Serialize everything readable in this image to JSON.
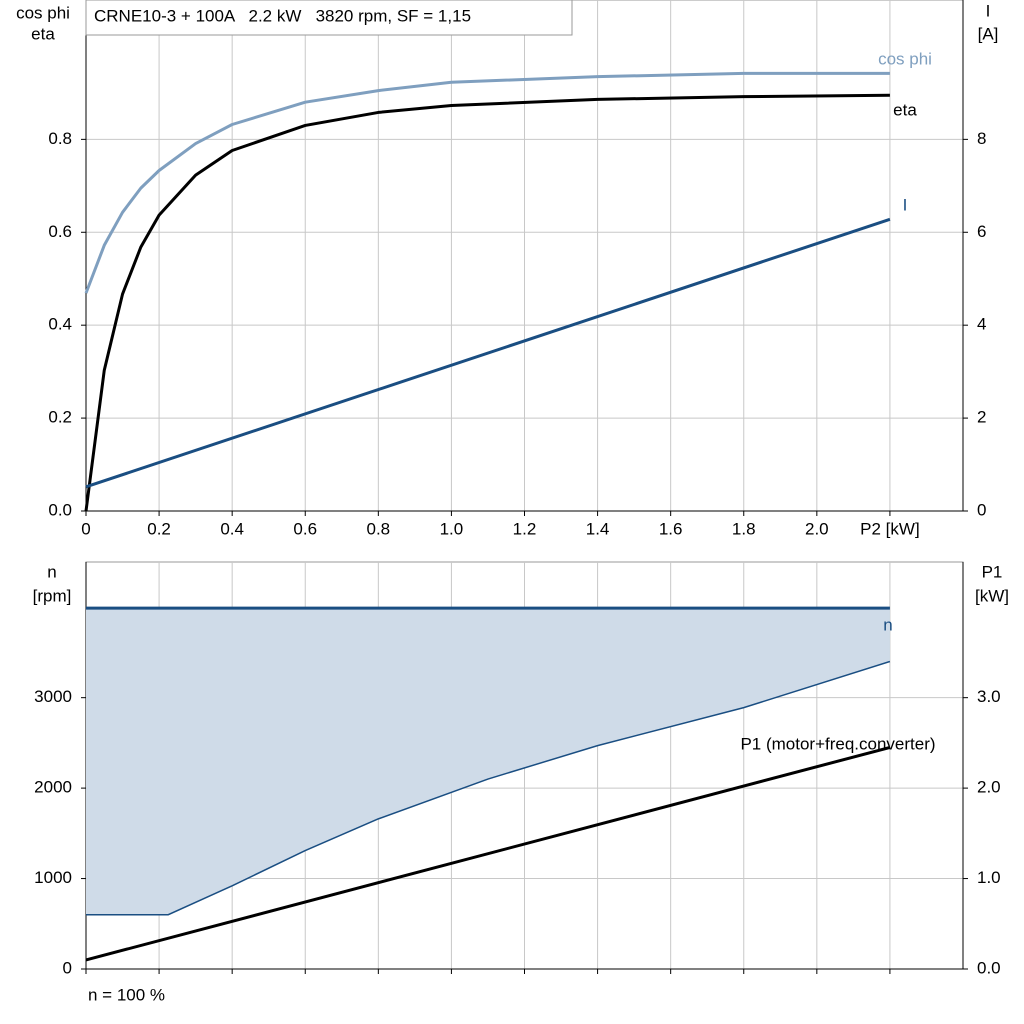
{
  "chart_data": [
    {
      "type": "line",
      "title": "CRNE10-3 + 100A   2.2 kW   3820 rpm, SF = 1,15",
      "ylabel": [
        "cos phi",
        "eta"
      ],
      "y2label": [
        "I",
        "[A]"
      ],
      "xlim": [
        0,
        2.4
      ],
      "xticks": [
        0,
        0.2,
        0.4,
        0.6,
        0.8,
        {
          "value": 1,
          "label": "1.0"
        },
        1.2,
        1.4,
        1.6,
        1.8,
        {
          "value": 2,
          "label": "2.0"
        },
        {
          "value": 2.2,
          "label": "P2 [kW]"
        }
      ],
      "ylim": [
        0,
        1.1
      ],
      "yticks": [
        {
          "value": 0,
          "label": "0.0"
        },
        0.2,
        0.4,
        0.6,
        0.8
      ],
      "y2lim": [
        0,
        11
      ],
      "y2ticks": [
        0,
        2,
        4,
        6,
        8
      ],
      "grid": true,
      "series": [
        {
          "name": "cos phi",
          "color": "#7f9fbf",
          "axis": "y",
          "x": [
            0,
            0.05,
            0.1,
            0.15,
            0.2,
            0.3,
            0.4,
            0.6,
            0.8,
            1.0,
            1.4,
            1.8,
            2.2
          ],
          "values": [
            0.469,
            0.572,
            0.643,
            0.695,
            0.733,
            0.791,
            0.832,
            0.88,
            0.905,
            0.923,
            0.935,
            0.942,
            0.942
          ]
        },
        {
          "name": "eta",
          "color": "#000000",
          "axis": "y",
          "x": [
            0,
            0.05,
            0.1,
            0.15,
            0.2,
            0.3,
            0.4,
            0.6,
            0.8,
            1.0,
            1.4,
            1.8,
            2.2
          ],
          "values": [
            0,
            0.303,
            0.467,
            0.568,
            0.637,
            0.723,
            0.776,
            0.83,
            0.858,
            0.873,
            0.886,
            0.892,
            0.895
          ]
        },
        {
          "name": "I",
          "color": "#1a4e82",
          "axis": "y2",
          "x": [
            0,
            2.2
          ],
          "values": [
            0.52,
            6.28
          ]
        }
      ]
    },
    {
      "type": "area",
      "annotation": "n = 100 %",
      "ylabel": [
        "n",
        "[rpm]"
      ],
      "y2label": [
        "P1",
        "[kW]"
      ],
      "xlim": [
        0,
        2.4
      ],
      "xgrid": [
        0,
        0.2,
        0.4,
        0.6,
        0.8,
        1.0,
        1.2,
        1.4,
        1.6,
        1.8,
        2.0,
        2.2
      ],
      "ylim": [
        0,
        4500
      ],
      "yticks": [
        0,
        1000,
        2000,
        3000
      ],
      "y2lim": [
        0,
        4.5
      ],
      "y2ticks": [
        {
          "value": 0,
          "label": "0.0"
        },
        {
          "value": 1,
          "label": "1.0"
        },
        {
          "value": 2,
          "label": "2.0"
        },
        {
          "value": 3,
          "label": "3.0"
        }
      ],
      "grid": true,
      "series": [
        {
          "name": "n",
          "color": "#1a4e82",
          "axis": "y",
          "fill": "#cfdbe8",
          "x": [
            0,
            2.2
          ],
          "values": [
            3990,
            3990
          ],
          "lower_x": [
            0,
            0.225,
            0.4,
            0.6,
            0.8,
            1.1,
            1.4,
            1.8,
            2.2
          ],
          "lower_values": [
            600,
            600,
            920,
            1310,
            1660,
            2100,
            2470,
            2890,
            3400
          ]
        },
        {
          "name": "P1 (motor+freq.converter)",
          "color": "#000000",
          "axis": "y2",
          "x": [
            0,
            2.2
          ],
          "values": [
            0.1,
            2.45
          ]
        }
      ]
    }
  ]
}
